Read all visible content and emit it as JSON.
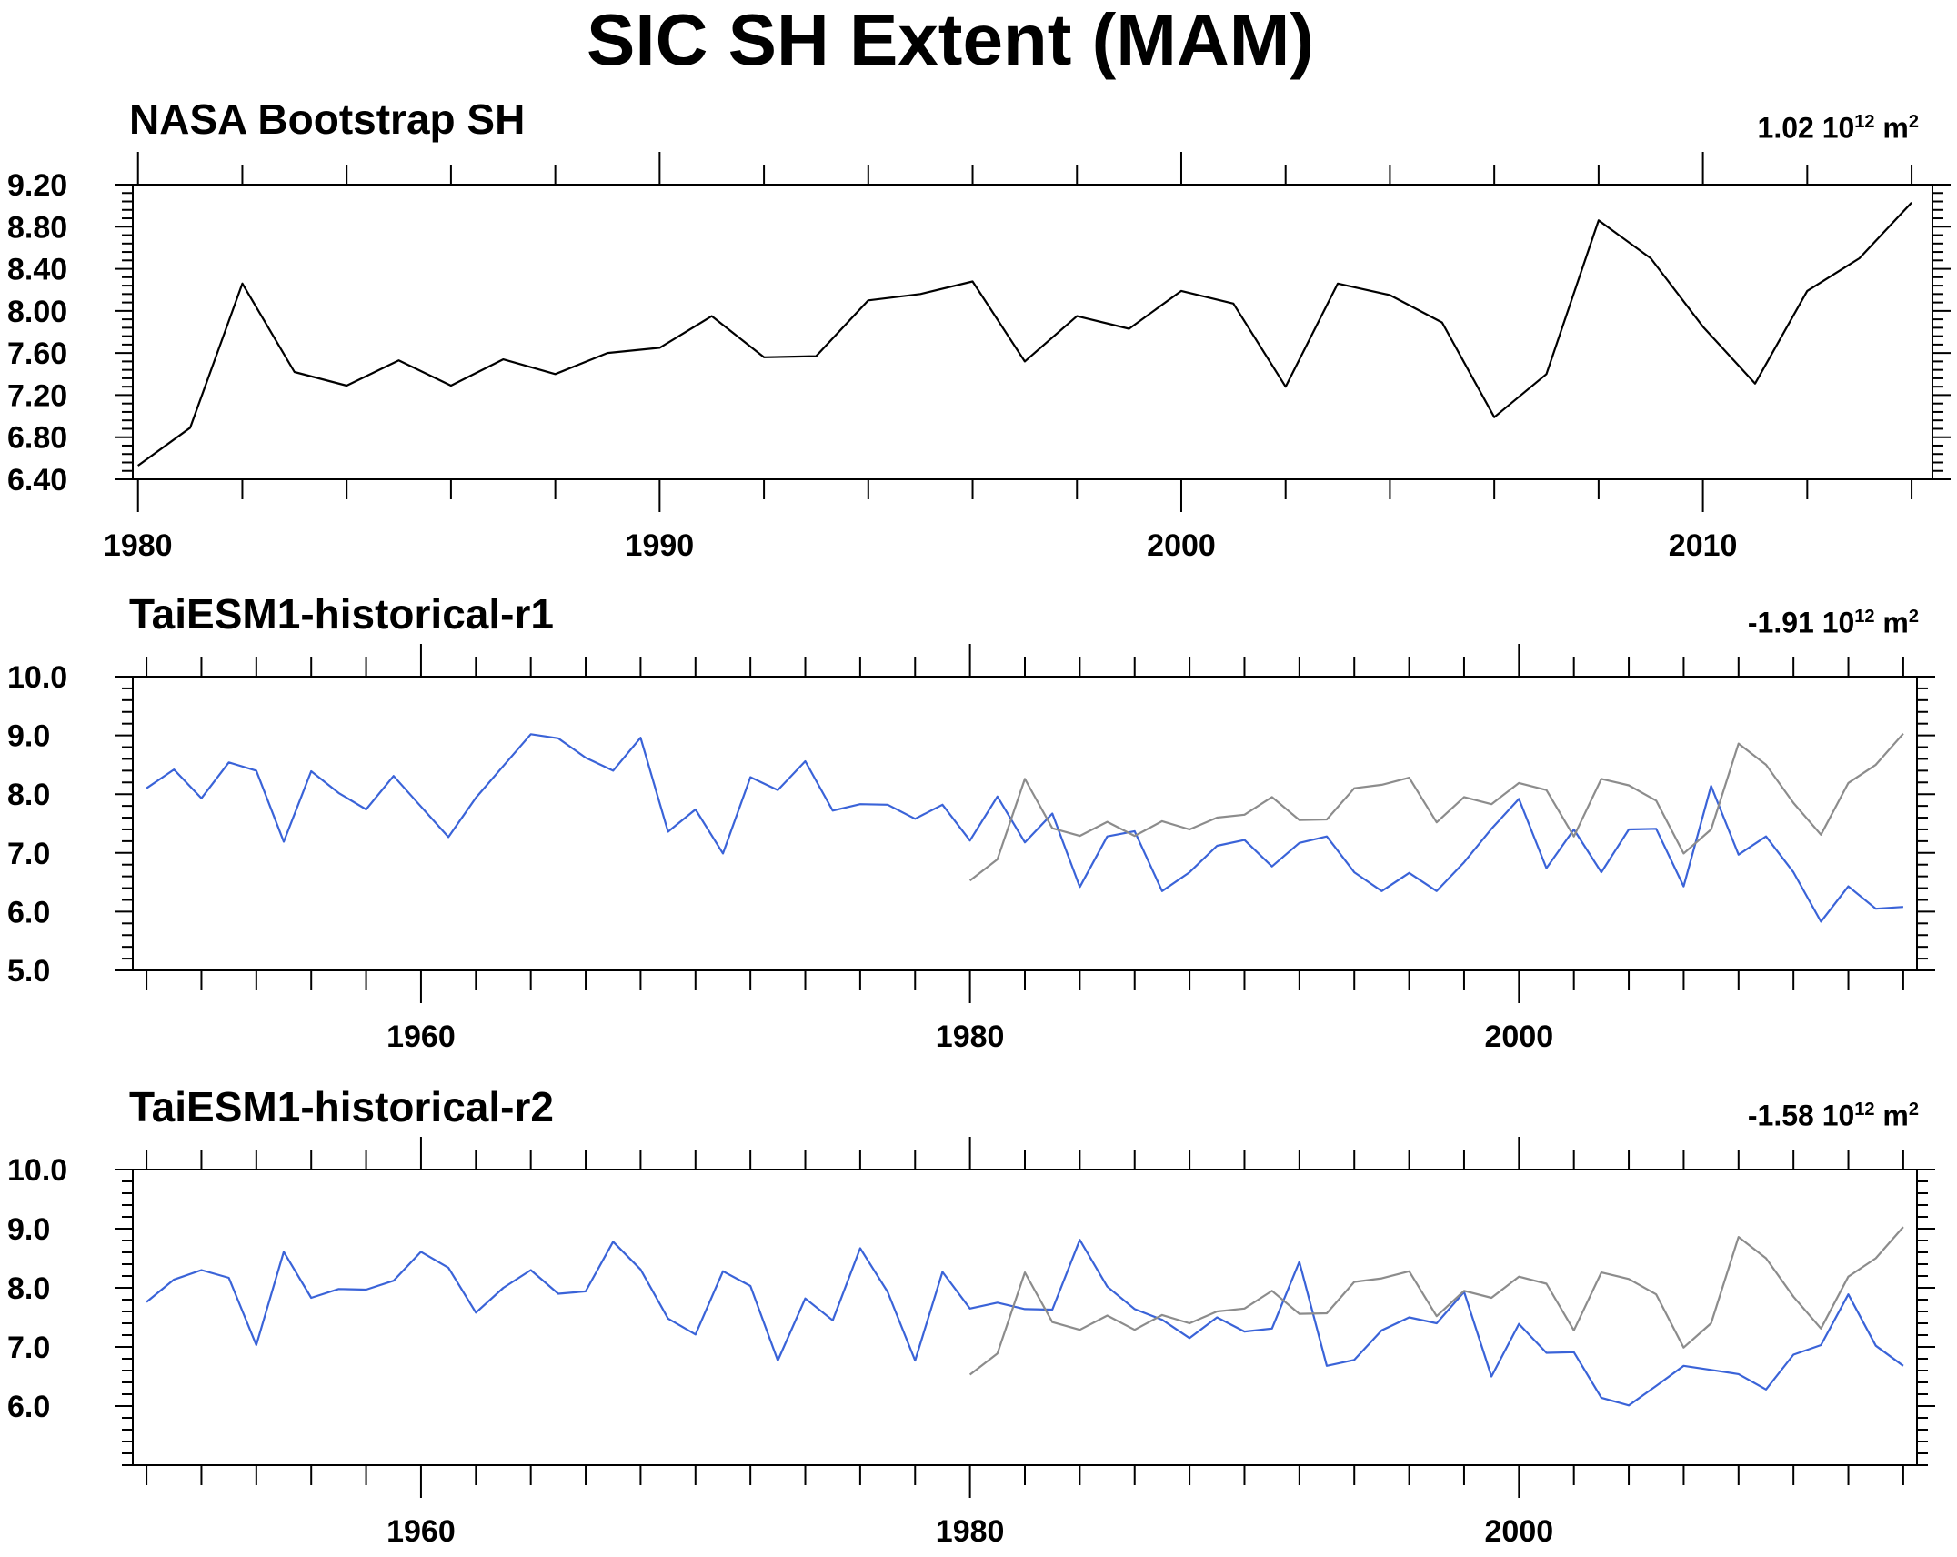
{
  "title": "SIC SH Extent (MAM)",
  "colors": {
    "observation": "#000000",
    "observation_overlay": "#8c8c8c",
    "model": "#3a63d8"
  },
  "panels": [
    {
      "title": "NASA Bootstrap SH",
      "value": "1.02",
      "unit_base": "10",
      "unit_exp": "12",
      "unit_suffix": "m",
      "unit_suffix_exp": "2"
    },
    {
      "title": "TaiESM1-historical-r1",
      "value": "-1.91",
      "unit_base": "10",
      "unit_exp": "12",
      "unit_suffix": "m",
      "unit_suffix_exp": "2"
    },
    {
      "title": "TaiESM1-historical-r2",
      "value": "-1.58",
      "unit_base": "10",
      "unit_exp": "12",
      "unit_suffix": "m",
      "unit_suffix_exp": "2"
    }
  ],
  "chart_data": [
    {
      "type": "line",
      "title": "NASA Bootstrap SH",
      "xlim": [
        1979.9,
        2014.4
      ],
      "ylim": [
        6.4,
        9.2
      ],
      "xticks": [
        1980,
        1990,
        2000,
        2010
      ],
      "yticks": [
        "6.40",
        "6.80",
        "7.20",
        "7.60",
        "8.00",
        "8.40",
        "8.80",
        "9.20"
      ],
      "series": [
        {
          "role": "observation",
          "color": "#000000",
          "x": [
            1980,
            1981,
            1982,
            1983,
            1984,
            1985,
            1986,
            1987,
            1988,
            1989,
            1990,
            1991,
            1992,
            1993,
            1994,
            1995,
            1996,
            1997,
            1998,
            1999,
            2000,
            2001,
            2002,
            2003,
            2004,
            2005,
            2006,
            2007,
            2008,
            2009,
            2010,
            2011,
            2012,
            2013,
            2014
          ],
          "values": [
            6.53,
            6.89,
            8.26,
            7.42,
            7.29,
            7.53,
            7.29,
            7.54,
            7.4,
            7.6,
            7.65,
            7.95,
            7.56,
            7.57,
            8.1,
            8.16,
            8.28,
            7.52,
            7.95,
            7.83,
            8.19,
            8.07,
            7.28,
            8.26,
            8.15,
            7.89,
            6.99,
            7.4,
            8.86,
            8.5,
            7.85,
            7.31,
            8.19,
            8.5,
            9.03
          ]
        }
      ]
    },
    {
      "type": "line",
      "title": "TaiESM1-historical-r1",
      "xlim": [
        1949.5,
        2014.5
      ],
      "ylim": [
        5.0,
        10.0
      ],
      "xticks": [
        1960,
        1980,
        2000
      ],
      "yticks": [
        "5.0",
        "6.0",
        "7.0",
        "8.0",
        "9.0",
        "10.0"
      ],
      "series": [
        {
          "role": "model",
          "color": "#3a63d8",
          "x_start": 1950,
          "values": [
            8.1,
            8.42,
            7.93,
            8.54,
            8.4,
            7.19,
            8.39,
            8.02,
            7.74,
            8.31,
            7.79,
            7.27,
            7.94,
            8.48,
            9.02,
            8.95,
            8.62,
            8.4,
            8.96,
            7.36,
            7.74,
            6.99,
            8.29,
            8.07,
            8.56,
            7.72,
            7.83,
            7.82,
            7.58,
            7.82,
            7.21,
            7.96,
            7.18,
            7.67,
            6.42,
            7.28,
            7.37,
            6.35,
            6.67,
            7.12,
            7.22,
            6.77,
            7.17,
            7.28,
            6.67,
            6.35,
            6.66,
            6.35,
            6.84,
            7.41,
            7.92,
            6.74,
            7.4,
            6.67,
            7.4,
            7.41,
            6.43,
            8.14,
            6.97,
            7.28,
            6.67,
            5.83,
            6.43,
            6.05,
            6.08
          ]
        },
        {
          "role": "observation",
          "color": "#8c8c8c",
          "x_start": 1980,
          "values": [
            6.53,
            6.89,
            8.26,
            7.42,
            7.29,
            7.53,
            7.29,
            7.54,
            7.4,
            7.6,
            7.65,
            7.95,
            7.56,
            7.57,
            8.1,
            8.16,
            8.28,
            7.52,
            7.95,
            7.83,
            8.19,
            8.07,
            7.28,
            8.26,
            8.15,
            7.89,
            6.99,
            7.4,
            8.86,
            8.5,
            7.85,
            7.31,
            8.19,
            8.5,
            9.03
          ]
        }
      ]
    },
    {
      "type": "line",
      "title": "TaiESM1-historical-r2",
      "xlim": [
        1949.5,
        2014.5
      ],
      "ylim": [
        5.0,
        10.0
      ],
      "xticks": [
        1960,
        1980,
        2000
      ],
      "yticks": [
        "6.0",
        "7.0",
        "8.0",
        "9.0",
        "10.0"
      ],
      "series": [
        {
          "role": "model",
          "color": "#3a63d8",
          "x_start": 1950,
          "values": [
            7.76,
            8.14,
            8.3,
            8.17,
            7.03,
            8.61,
            7.83,
            7.98,
            7.97,
            8.12,
            8.61,
            8.34,
            7.58,
            8.0,
            8.3,
            7.9,
            7.94,
            8.78,
            8.31,
            7.48,
            7.21,
            8.28,
            8.03,
            6.77,
            7.82,
            7.45,
            8.67,
            7.93,
            6.77,
            8.27,
            7.65,
            7.75,
            7.64,
            7.63,
            8.81,
            8.02,
            7.64,
            7.46,
            7.15,
            7.5,
            7.26,
            7.31,
            8.44,
            6.68,
            6.78,
            7.28,
            7.5,
            7.4,
            7.93,
            6.5,
            7.39,
            6.9,
            6.91,
            6.14,
            6.01,
            6.34,
            6.68,
            6.61,
            6.54,
            6.28,
            6.87,
            7.03,
            7.89,
            7.02,
            6.68
          ]
        },
        {
          "role": "observation",
          "color": "#8c8c8c",
          "x_start": 1980,
          "values": [
            6.53,
            6.89,
            8.26,
            7.42,
            7.29,
            7.53,
            7.29,
            7.54,
            7.4,
            7.6,
            7.65,
            7.95,
            7.56,
            7.57,
            8.1,
            8.16,
            8.28,
            7.52,
            7.95,
            7.83,
            8.19,
            8.07,
            7.28,
            8.26,
            8.15,
            7.89,
            6.99,
            7.4,
            8.86,
            8.5,
            7.85,
            7.31,
            8.19,
            8.5,
            9.03
          ]
        }
      ]
    }
  ]
}
